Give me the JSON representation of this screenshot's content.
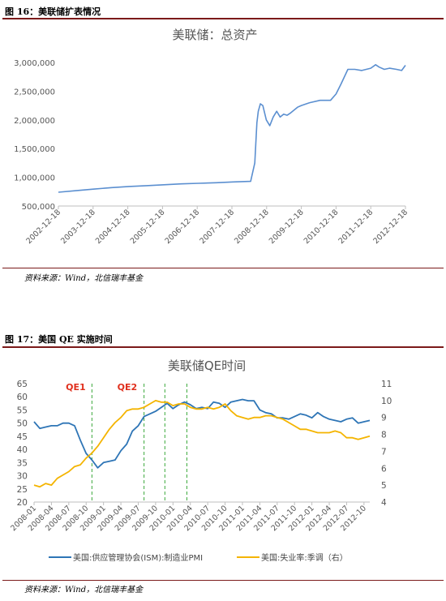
{
  "figure16": {
    "caption": "图 16：美联储扩表情况",
    "source": "资料来源：Wind，北信瑞丰基金"
  },
  "figure17": {
    "caption": "图 17：美国 QE 实施时间",
    "source": "资料来源：Wind，北信瑞丰基金"
  },
  "chart_data": [
    {
      "type": "line",
      "title": "美联储：总资产",
      "xlabel": "",
      "ylabel": "",
      "ylim": [
        500000,
        3000000
      ],
      "yticks": [
        "3,000,000",
        "2,500,000",
        "2,000,000",
        "1,500,000",
        "1,000,000",
        "500,000"
      ],
      "xticks": [
        "2002-12-18",
        "2003-12-18",
        "2004-12-18",
        "2005-12-18",
        "2006-12-18",
        "2007-12-18",
        "2008-12-18",
        "2009-12-18",
        "2010-12-18",
        "2011-12-18",
        "2012-12-18"
      ],
      "color": "#5b8fd0",
      "series": [
        {
          "x": [
            2002.96,
            2003.5,
            2004.0,
            2004.5,
            2005.0,
            2005.5,
            2006.0,
            2006.5,
            2007.0,
            2007.5,
            2008.0,
            2008.5,
            2008.62,
            2008.68,
            2008.72,
            2008.78,
            2008.85,
            2008.95,
            2009.05,
            2009.15,
            2009.25,
            2009.35,
            2009.45,
            2009.55,
            2009.65,
            2009.75,
            2009.85,
            2009.96,
            2010.2,
            2010.5,
            2010.8,
            2010.96,
            2011.1,
            2011.3,
            2011.5,
            2011.7,
            2011.96,
            2012.1,
            2012.2,
            2012.35,
            2012.5,
            2012.7,
            2012.85,
            2012.96
          ],
          "values": [
            740000,
            770000,
            795000,
            820000,
            840000,
            855000,
            870000,
            885000,
            895000,
            905000,
            920000,
            930000,
            1250000,
            1950000,
            2150000,
            2280000,
            2250000,
            2000000,
            1900000,
            2050000,
            2150000,
            2050000,
            2100000,
            2080000,
            2120000,
            2170000,
            2220000,
            2250000,
            2300000,
            2340000,
            2340000,
            2450000,
            2620000,
            2880000,
            2880000,
            2860000,
            2900000,
            2960000,
            2920000,
            2880000,
            2900000,
            2880000,
            2860000,
            2950000
          ]
        }
      ]
    },
    {
      "type": "line",
      "title": "美联储QE时间",
      "ylim": [
        20,
        65
      ],
      "y2lim": [
        4,
        11
      ],
      "yticks": [
        "65",
        "60",
        "55",
        "50",
        "45",
        "40",
        "35",
        "30",
        "25",
        "20"
      ],
      "y2ticks": [
        "11",
        "10",
        "9",
        "8",
        "7",
        "6",
        "5",
        "4"
      ],
      "xticks": [
        "2008-01",
        "2008-04",
        "2008-07",
        "2008-10",
        "2009-01",
        "2009-04",
        "2009-07",
        "2009-10",
        "2010-01",
        "2010-04",
        "2010-07",
        "2010-10",
        "2011-01",
        "2011-04",
        "2011-07",
        "2011-10",
        "2012-01",
        "2012-04",
        "2012-07",
        "2012-10"
      ],
      "annotations": [
        {
          "text": "QE1",
          "x_index": 7.2
        },
        {
          "text": "QE2",
          "x_index": 16.1
        }
      ],
      "vlines_x_index": [
        10.0,
        19.0,
        22.6,
        26.4
      ],
      "legend": [
        "美国:供应管理协会(ISM):制造业PMI",
        "美国:失业率:季调（右）"
      ],
      "series": [
        {
          "name": "美国:供应管理协会(ISM):制造业PMI",
          "axis": "left",
          "color": "#2e75b6",
          "x_index": [
            0,
            1,
            2,
            3,
            4,
            5,
            6,
            7,
            8,
            9,
            10,
            11,
            12,
            13,
            14,
            15,
            16,
            17,
            18,
            19,
            20,
            21,
            22,
            23,
            24,
            25,
            26,
            27,
            28,
            29,
            30,
            31,
            32,
            33,
            34,
            35,
            36,
            37,
            38,
            39,
            40,
            41,
            42,
            43,
            44,
            45,
            46,
            47,
            48,
            49,
            50,
            51,
            52,
            53,
            54,
            55,
            56,
            57,
            58
          ],
          "values": [
            50.5,
            48,
            48.5,
            49,
            49,
            50,
            50,
            49,
            43.5,
            38.5,
            36,
            33,
            35,
            35.5,
            36,
            39.5,
            42,
            47,
            49,
            52.5,
            53.5,
            54.5,
            56,
            57.5,
            55.5,
            57,
            58,
            57,
            55.5,
            56,
            55.5,
            58,
            57.5,
            56,
            58,
            58.5,
            59,
            58.5,
            58.5,
            55,
            54,
            53.5,
            52,
            52,
            51.5,
            52.5,
            53.5,
            53,
            52,
            54,
            52.5,
            51.5,
            51,
            50.5,
            51.5,
            52,
            50,
            50.5,
            51
          ]
        },
        {
          "name": "美国:失业率:季调（右）",
          "axis": "right",
          "color": "#f4b400",
          "x_index": [
            0,
            1,
            2,
            3,
            4,
            5,
            6,
            7,
            8,
            9,
            10,
            11,
            12,
            13,
            14,
            15,
            16,
            17,
            18,
            19,
            20,
            21,
            22,
            23,
            24,
            25,
            26,
            27,
            28,
            29,
            30,
            31,
            32,
            33,
            34,
            35,
            36,
            37,
            38,
            39,
            40,
            41,
            42,
            43,
            44,
            45,
            46,
            47,
            48,
            49,
            50,
            51,
            52,
            53,
            54,
            55,
            56,
            57,
            58
          ],
          "values": [
            5.0,
            4.9,
            5.1,
            5.0,
            5.4,
            5.6,
            5.8,
            6.1,
            6.2,
            6.6,
            6.9,
            7.3,
            7.8,
            8.3,
            8.7,
            9.0,
            9.4,
            9.5,
            9.5,
            9.6,
            9.8,
            10.0,
            9.9,
            9.9,
            9.7,
            9.8,
            9.8,
            9.6,
            9.5,
            9.5,
            9.6,
            9.5,
            9.6,
            9.8,
            9.4,
            9.1,
            9.0,
            8.9,
            9.0,
            9.0,
            9.1,
            9.1,
            9.0,
            8.9,
            8.7,
            8.5,
            8.3,
            8.3,
            8.2,
            8.1,
            8.1,
            8.1,
            8.2,
            8.1,
            7.8,
            7.8,
            7.7,
            7.8,
            7.9
          ]
        }
      ]
    }
  ]
}
